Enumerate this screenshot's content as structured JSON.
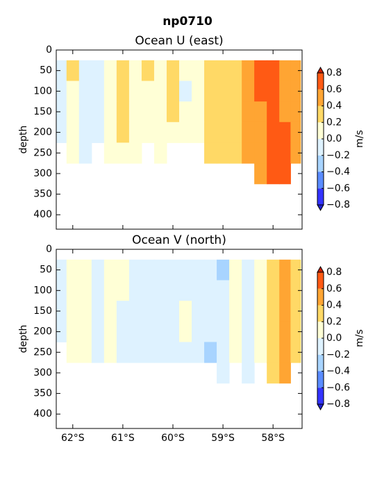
{
  "title": "np0710",
  "chart_data": [
    {
      "type": "contourf",
      "title": "Ocean U (east)",
      "ylabel": "depth",
      "x": [
        -62.25,
        -62.0,
        -61.75,
        -61.5,
        -61.25,
        -61.0,
        -60.75,
        -60.5,
        -60.25,
        -60.0,
        -59.75,
        -59.5,
        -59.25,
        -59.0,
        -58.75,
        -58.5,
        -58.25,
        -58.0,
        -57.75,
        -57.55
      ],
      "y": [
        50,
        100,
        150,
        200,
        250,
        300
      ],
      "z": [
        [
          -0.1,
          0.3,
          -0.1,
          -0.1,
          0.1,
          0.3,
          0.1,
          0.3,
          0.1,
          0.3,
          0.1,
          0.1,
          0.3,
          0.3,
          0.3,
          0.5,
          0.7,
          0.7,
          0.5,
          0.5
        ],
        [
          -0.1,
          0.1,
          -0.1,
          -0.1,
          0.1,
          0.3,
          0.1,
          0.1,
          0.1,
          0.3,
          -0.1,
          0.1,
          0.3,
          0.3,
          0.3,
          0.5,
          0.7,
          0.7,
          0.5,
          0.5
        ],
        [
          -0.1,
          0.1,
          -0.1,
          -0.1,
          0.1,
          0.3,
          0.1,
          0.1,
          0.1,
          0.3,
          0.1,
          0.1,
          0.3,
          0.3,
          0.3,
          0.5,
          0.5,
          0.7,
          0.5,
          0.5
        ],
        [
          -0.1,
          0.1,
          -0.1,
          -0.1,
          0.1,
          0.3,
          0.1,
          0.1,
          0.1,
          0.1,
          0.1,
          0.1,
          0.3,
          0.3,
          0.3,
          0.5,
          0.5,
          0.7,
          0.7,
          0.5
        ],
        [
          null,
          0.1,
          -0.1,
          null,
          0.1,
          0.1,
          0.1,
          null,
          0.1,
          null,
          null,
          null,
          0.3,
          0.3,
          0.3,
          0.5,
          0.5,
          0.7,
          0.7,
          0.5
        ],
        [
          null,
          null,
          null,
          null,
          null,
          null,
          null,
          null,
          null,
          null,
          null,
          null,
          null,
          null,
          null,
          null,
          0.5,
          0.7,
          0.7,
          null
        ]
      ],
      "xlim": [
        -62.33,
        -57.42
      ],
      "ylim": [
        0,
        435
      ],
      "invert_y": true,
      "yticks": [
        0,
        50,
        100,
        150,
        200,
        250,
        300,
        350,
        400
      ],
      "colorbar": {
        "label": "m/s",
        "extend": "both",
        "levels": [
          {
            "value": -0.8,
            "label": "−0.8"
          },
          {
            "value": -0.6,
            "label": "−0.6"
          },
          {
            "value": -0.4,
            "label": "−0.4"
          },
          {
            "value": -0.2,
            "label": "−0.2"
          },
          {
            "value": 0,
            "label": "0.0"
          },
          0.2,
          0.4,
          0.6,
          0.8
        ],
        "colors": [
          "#3333ff",
          "#5a8cff",
          "#a8d4ff",
          "#def2ff",
          "#ffffd6",
          "#ffd966",
          "#ffa533",
          "#ff5a14"
        ],
        "under": "#2020d0",
        "over": "#c81e00"
      }
    },
    {
      "type": "contourf",
      "title": "Ocean V (north)",
      "ylabel": "depth",
      "x": [
        -62.25,
        -62.0,
        -61.75,
        -61.5,
        -61.25,
        -61.0,
        -60.75,
        -60.5,
        -60.25,
        -60.0,
        -59.75,
        -59.5,
        -59.25,
        -59.0,
        -58.75,
        -58.5,
        -58.25,
        -58.0,
        -57.75,
        -57.55
      ],
      "y": [
        50,
        100,
        150,
        200,
        250,
        300
      ],
      "z": [
        [
          -0.1,
          0.1,
          0.1,
          -0.1,
          0.1,
          0.1,
          -0.1,
          -0.1,
          -0.1,
          -0.1,
          -0.1,
          -0.1,
          -0.1,
          -0.3,
          0.1,
          -0.1,
          0.1,
          0.3,
          0.5,
          0.3
        ],
        [
          -0.1,
          0.1,
          0.1,
          -0.1,
          0.1,
          0.1,
          -0.1,
          -0.1,
          -0.1,
          -0.1,
          -0.1,
          -0.1,
          -0.1,
          -0.1,
          0.1,
          -0.1,
          0.1,
          0.3,
          0.5,
          0.3
        ],
        [
          -0.1,
          0.1,
          0.1,
          -0.1,
          0.1,
          -0.1,
          -0.1,
          -0.1,
          -0.1,
          -0.1,
          0.1,
          -0.1,
          -0.1,
          -0.1,
          0.1,
          -0.1,
          0.1,
          0.3,
          0.5,
          0.3
        ],
        [
          -0.1,
          0.1,
          0.1,
          -0.1,
          0.1,
          -0.1,
          -0.1,
          -0.1,
          -0.1,
          -0.1,
          0.1,
          -0.1,
          -0.1,
          -0.1,
          0.1,
          -0.1,
          0.1,
          0.3,
          0.5,
          0.3
        ],
        [
          null,
          0.1,
          0.1,
          -0.1,
          0.1,
          -0.1,
          -0.1,
          -0.1,
          -0.1,
          -0.1,
          -0.1,
          -0.1,
          -0.3,
          -0.1,
          0.1,
          -0.1,
          0.1,
          0.3,
          0.5,
          0.3
        ],
        [
          null,
          null,
          null,
          null,
          null,
          null,
          null,
          null,
          null,
          null,
          null,
          null,
          null,
          -0.1,
          null,
          -0.1,
          null,
          0.3,
          0.5,
          null
        ]
      ],
      "xlim": [
        -62.33,
        -57.42
      ],
      "ylim": [
        0,
        435
      ],
      "invert_y": true,
      "yticks": [
        0,
        50,
        100,
        150,
        200,
        250,
        300,
        350,
        400
      ],
      "xticks": [
        {
          "value": -62,
          "label": "62°S"
        },
        {
          "value": -61,
          "label": "61°S"
        },
        {
          "value": -60,
          "label": "60°S"
        },
        {
          "value": -59,
          "label": "59°S"
        },
        {
          "value": -58,
          "label": "58°S"
        }
      ],
      "colorbar": {
        "label": "m/s",
        "extend": "both",
        "levels": [
          {
            "value": -0.8,
            "label": "−0.8"
          },
          {
            "value": -0.6,
            "label": "−0.6"
          },
          {
            "value": -0.4,
            "label": "−0.4"
          },
          {
            "value": -0.2,
            "label": "−0.2"
          },
          {
            "value": 0,
            "label": "0.0"
          },
          0.2,
          0.4,
          0.6,
          0.8
        ],
        "colors": [
          "#3333ff",
          "#5a8cff",
          "#a8d4ff",
          "#def2ff",
          "#ffffd6",
          "#ffd966",
          "#ffa533",
          "#ff5a14"
        ],
        "under": "#2020d0",
        "over": "#c81e00"
      }
    }
  ]
}
